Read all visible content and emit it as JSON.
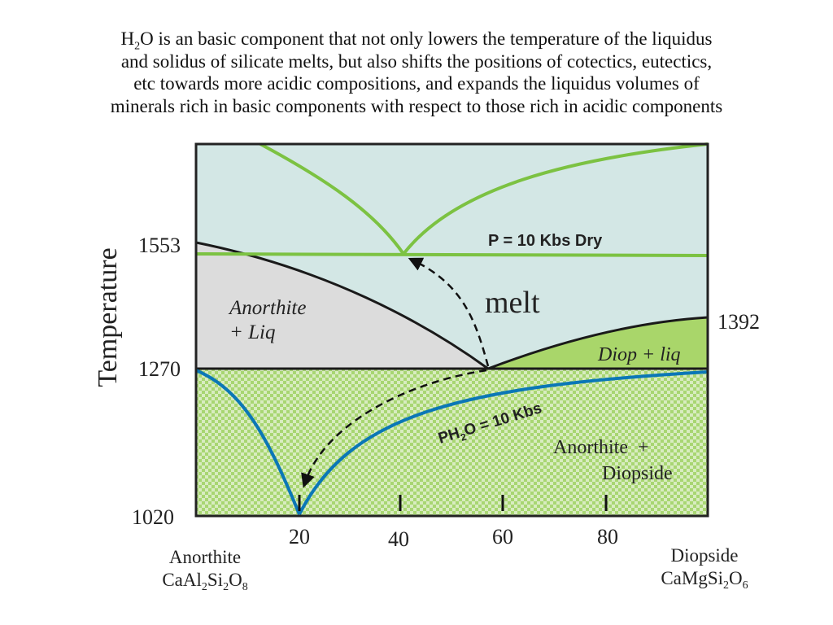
{
  "caption": {
    "lines": [
      {
        "pre": "H",
        "sub": "2",
        "post": "O is an basic component that not only lowers the temperature of the liquidus"
      },
      {
        "pre": "and solidus of  silicate melts, but also shifts the positions of cotectics, eutectics,",
        "sub": "",
        "post": ""
      },
      {
        "pre": "etc towards more acidic compositions, and expands the liquidus volumes of",
        "sub": "",
        "post": ""
      },
      {
        "pre": "minerals rich in basic components with respect to those rich in acidic components",
        "sub": "",
        "post": ""
      }
    ]
  },
  "diagram": {
    "y_axis_label": "Temperature",
    "temperature_ticks": {
      "t1553": "1553",
      "t1270": "1270",
      "t1020": "1020",
      "t1392": "1392"
    },
    "x_ticks": [
      "20",
      "40",
      "60",
      "80"
    ],
    "left_end": {
      "name": "Anorthite",
      "formula": [
        [
          "CaAl",
          ""
        ],
        [
          "",
          "2"
        ],
        [
          "Si",
          ""
        ],
        [
          "",
          "2"
        ],
        [
          "O",
          ""
        ],
        [
          "",
          "8"
        ]
      ]
    },
    "right_end": {
      "name": "Diopside",
      "formula": [
        [
          "CaMgSi",
          ""
        ],
        [
          "",
          "2"
        ],
        [
          "O",
          ""
        ],
        [
          "",
          "6"
        ]
      ]
    },
    "field_labels": {
      "anorthite_liq_1": "Anorthite",
      "anorthite_liq_2": "+ Liq",
      "melt": "melt",
      "diop_liq": "Diop + liq",
      "anorthite_diopside_1": "Anorthite  +",
      "anorthite_diopside_2": "Diopside"
    },
    "curve_labels": {
      "dry": "P = 10 Kbs Dry",
      "wet_pre": "PH",
      "wet_sub": "2",
      "wet_post": "O = 10 Kbs"
    },
    "colors": {
      "melt_field": "#d3e7e5",
      "anorthite_liq_field": "#dcdcdc",
      "diop_liq_field": "#a9d66a",
      "solid_checker_light": "#d8ecc0",
      "solid_checker_dark": "#a8d672",
      "dry_curve": "#7cc242",
      "wet_curve": "#0b77b6",
      "boundary": "#1a1a1a"
    }
  }
}
